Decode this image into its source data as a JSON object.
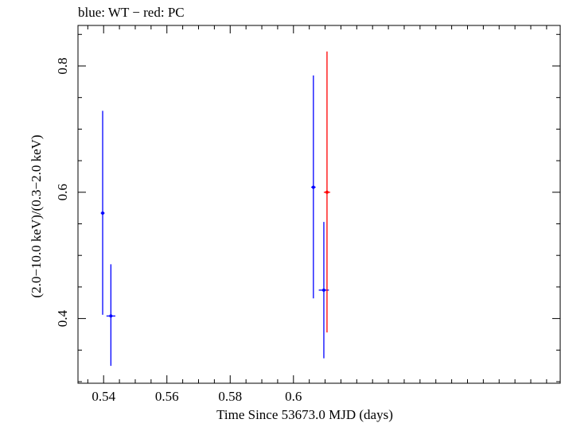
{
  "chart_data": {
    "type": "scatter",
    "title": "blue: WT − red: PC",
    "xlabel": "Time Since 53673.0 MJD (days)",
    "ylabel": "(2.0−10.0 keV)/(0.3−2.0 keV)",
    "xlim": [
      0.5319,
      0.6843
    ],
    "ylim": [
      0.2975,
      0.8642
    ],
    "x_ticks": [
      0.54,
      0.56,
      0.58,
      0.6
    ],
    "x_tick_labels": [
      "0.54",
      "0.56",
      "0.58",
      "0.6"
    ],
    "y_ticks": [
      0.4,
      0.6,
      0.8
    ],
    "y_tick_labels": [
      "0.4",
      "0.6",
      "0.8"
    ],
    "grid": false,
    "series": [
      {
        "name": "WT",
        "color": "#0000ff",
        "points": [
          {
            "x": 0.5397,
            "xerr": 0.0006,
            "y": 0.567,
            "yerr_low": 0.161,
            "yerr_high": 0.162
          },
          {
            "x": 0.5423,
            "xerr": 0.0014,
            "y": 0.404,
            "yerr_low": 0.079,
            "yerr_high": 0.082
          },
          {
            "x": 0.6063,
            "xerr": 0.0007,
            "y": 0.608,
            "yerr_low": 0.176,
            "yerr_high": 0.177
          },
          {
            "x": 0.6096,
            "xerr": 0.0016,
            "y": 0.445,
            "yerr_low": 0.108,
            "yerr_high": 0.108
          }
        ]
      },
      {
        "name": "PC",
        "color": "#ff0000",
        "points": [
          {
            "x": 0.6106,
            "xerr": 0.001,
            "y": 0.6,
            "yerr_low": 0.222,
            "yerr_high": 0.223
          }
        ]
      }
    ]
  }
}
